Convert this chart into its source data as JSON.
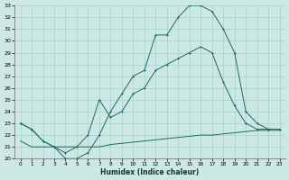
{
  "xlabel": "Humidex (Indice chaleur)",
  "bg_color": "#cce8e5",
  "grid_color": "#aacfcc",
  "line_color": "#1a6b60",
  "xmin": -0.5,
  "xmax": 23.5,
  "ymin": 20,
  "ymax": 33,
  "yticks": [
    20,
    21,
    22,
    23,
    24,
    25,
    26,
    27,
    28,
    29,
    30,
    31,
    32,
    33
  ],
  "xticks": [
    0,
    1,
    2,
    3,
    4,
    5,
    6,
    7,
    8,
    9,
    10,
    11,
    12,
    13,
    14,
    15,
    16,
    17,
    18,
    19,
    20,
    21,
    22,
    23
  ],
  "line1_x": [
    0,
    1,
    2,
    3,
    4,
    5,
    6,
    7,
    8,
    9,
    10,
    11,
    12,
    13,
    14,
    15,
    16,
    17,
    18,
    19,
    20,
    21,
    22,
    23
  ],
  "line1_y": [
    23,
    22.5,
    21.5,
    21.0,
    20.0,
    20.0,
    20.5,
    22.0,
    24.0,
    25.5,
    27.0,
    27.5,
    30.5,
    30.5,
    32.0,
    33.0,
    33.0,
    32.5,
    31.0,
    29.0,
    24.0,
    23.0,
    22.5,
    22.5
  ],
  "line2_x": [
    0,
    1,
    2,
    3,
    4,
    5,
    6,
    7,
    8,
    9,
    10,
    11,
    12,
    13,
    14,
    15,
    16,
    17,
    18,
    19,
    20,
    21,
    22,
    23
  ],
  "line2_y": [
    23,
    22.5,
    21.5,
    21.0,
    20.5,
    21.0,
    22.0,
    25.0,
    23.5,
    24.0,
    25.5,
    26.0,
    27.5,
    28.0,
    28.5,
    29.0,
    29.5,
    29.0,
    26.5,
    24.5,
    23.0,
    22.5,
    22.5,
    22.5
  ],
  "line3_x": [
    0,
    1,
    2,
    3,
    4,
    5,
    6,
    7,
    8,
    9,
    10,
    11,
    12,
    13,
    14,
    15,
    16,
    17,
    18,
    19,
    20,
    21,
    22,
    23
  ],
  "line3_y": [
    21.5,
    21.0,
    21.0,
    21.0,
    21.0,
    21.0,
    21.0,
    21.0,
    21.2,
    21.3,
    21.4,
    21.5,
    21.6,
    21.7,
    21.8,
    21.9,
    22.0,
    22.0,
    22.1,
    22.2,
    22.3,
    22.4,
    22.4,
    22.4
  ]
}
